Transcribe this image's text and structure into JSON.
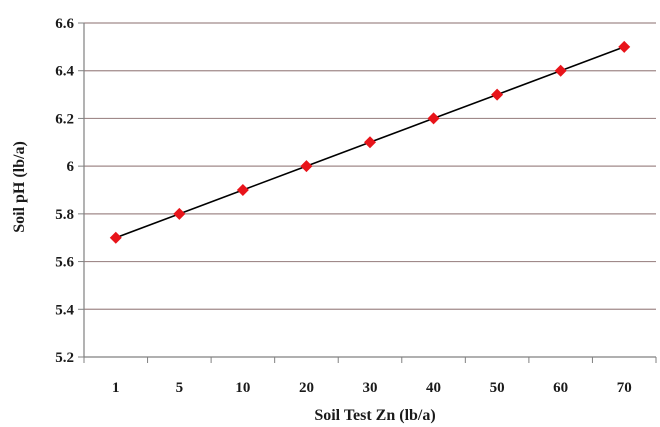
{
  "chart_data": {
    "type": "line",
    "title": "",
    "xlabel": "Soil Test Zn (lb/a)",
    "ylabel": "Soil pH (lb/a)",
    "categories": [
      "1",
      "5",
      "10",
      "20",
      "30",
      "40",
      "50",
      "60",
      "70"
    ],
    "series": [
      {
        "values": [
          5.7,
          5.8,
          5.9,
          6.0,
          6.1,
          6.2,
          6.3,
          6.4,
          6.5
        ]
      }
    ],
    "ylim": [
      5.2,
      6.6
    ],
    "yticks": [
      "5.2",
      "5.4",
      "5.6",
      "5.8",
      "6",
      "6.2",
      "6.4",
      "6.6"
    ],
    "grid": true,
    "legend": "none",
    "colors": {
      "line": "#000000",
      "marker": "#e8141a",
      "grid": "#a08a8a",
      "axis": "#808080"
    }
  }
}
